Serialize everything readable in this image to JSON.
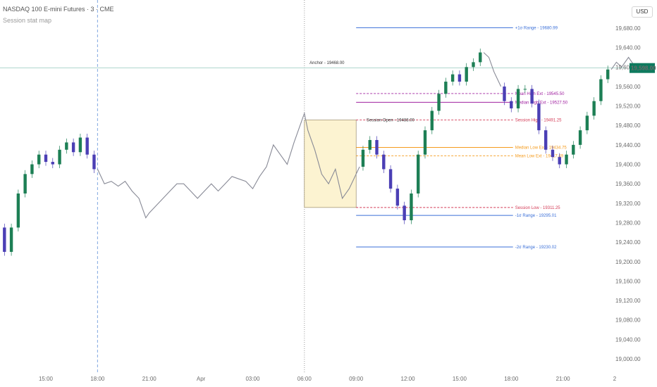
{
  "header": {
    "symbol": "NASDAQ 100 E-mini Futures · 3 · CME",
    "indicator": "Session stat map"
  },
  "currency": "USD",
  "colors": {
    "range": "#3a6fd8",
    "mean": "#a020a0",
    "session": "#d33a55",
    "low_ext": "#f59b1c",
    "bull": "#1d7f55",
    "bear": "#4b3fb5",
    "line": "#888a96",
    "price_tag": "#0e7a5e",
    "box_fill": "#fcf3d1",
    "box_border": "#8a7a55"
  },
  "chart_data": {
    "type": "line",
    "title": "NASDAQ 100 E-mini Futures · 3 · CME",
    "y_ticks": [
      19000,
      19040,
      19080,
      19120,
      19160,
      19200,
      19240,
      19280,
      19320,
      19360,
      19400,
      19440,
      19480,
      19520,
      19560,
      19600,
      19640,
      19680
    ],
    "y_tick_labels": [
      "19,000.00",
      "19,040.00",
      "19,080.00",
      "19,120.00",
      "19,160.00",
      "19,200.00",
      "19,240.00",
      "19,280.00",
      "19,320.00",
      "19,360.00",
      "19,400.00",
      "19,440.00",
      "19,480.00",
      "19,520.00",
      "19,560.00",
      "19,600.00",
      "19,640.00",
      "19,680.00"
    ],
    "ylim": [
      18990,
      19710
    ],
    "x_tick_labels": [
      "15:00",
      "18:00",
      "21:00",
      "Apr",
      "03:00",
      "06:00",
      "09:00",
      "12:00",
      "15:00",
      "18:00",
      "21:00",
      "2"
    ],
    "x_ticks_hours": [
      15,
      18,
      21,
      24,
      27,
      30,
      33,
      36,
      39,
      42,
      45,
      48
    ],
    "xlim_hours": [
      11.9,
      48
    ],
    "vlines_hours": [
      18,
      30
    ],
    "current_price": 19598,
    "current_price_label": "19,598.00",
    "anchor_label": "Anchor - 19468.00",
    "session_open_label": "Session Open - 19488.00",
    "session_box": {
      "x0": 30,
      "x1": 33,
      "y_high": 19491.25,
      "y_low": 19311.25
    },
    "levels": [
      {
        "label": "+1σ Range - 19680.99",
        "value": 19680.99,
        "kind": "range",
        "style": "solid"
      },
      {
        "label": "Mean High Ext - 19545.50",
        "value": 19545.5,
        "kind": "mean",
        "style": "dash"
      },
      {
        "label": "Median High Ext - 19527.50",
        "value": 19527.5,
        "kind": "mean",
        "style": "solid"
      },
      {
        "label": "Session High - 19491.25",
        "value": 19491.25,
        "kind": "session",
        "style": "dash"
      },
      {
        "label": "Median Low Ext - 19434.75",
        "value": 19434.75,
        "kind": "low_ext",
        "style": "solid"
      },
      {
        "label": "Mean Low Ext - 19417.49",
        "value": 19417.49,
        "kind": "low_ext",
        "style": "dash"
      },
      {
        "label": "Session Low - 19311.25",
        "value": 19311.25,
        "kind": "session",
        "style": "dash"
      },
      {
        "label": "-1σ Range - 19295.01",
        "value": 19295.01,
        "kind": "range",
        "style": "solid"
      },
      {
        "label": "-2σ Range - 19230.02",
        "value": 19230.02,
        "kind": "range",
        "style": "solid"
      }
    ],
    "levels_x_hours": [
      33,
      42.1
    ],
    "price_line_segments": [
      {
        "style": "candles",
        "points": [
          [
            11.9,
            19290
          ],
          [
            12.4,
            19270
          ],
          [
            12.8,
            19220
          ],
          [
            13.2,
            19270
          ],
          [
            13.6,
            19340
          ],
          [
            14.0,
            19380
          ],
          [
            14.4,
            19400
          ],
          [
            14.8,
            19420
          ],
          [
            15.2,
            19405
          ],
          [
            15.6,
            19400
          ],
          [
            16.0,
            19430
          ],
          [
            16.4,
            19445
          ],
          [
            16.8,
            19425
          ],
          [
            17.2,
            19455
          ],
          [
            17.6,
            19420
          ],
          [
            18.0,
            19390
          ]
        ]
      },
      {
        "style": "line",
        "points": [
          [
            18.0,
            19390
          ],
          [
            18.4,
            19360
          ],
          [
            18.8,
            19365
          ],
          [
            19.2,
            19355
          ],
          [
            19.6,
            19365
          ],
          [
            20.0,
            19345
          ],
          [
            20.4,
            19330
          ],
          [
            20.8,
            19290
          ],
          [
            21.0,
            19300
          ],
          [
            21.4,
            19315
          ],
          [
            21.8,
            19330
          ],
          [
            22.2,
            19345
          ],
          [
            22.6,
            19360
          ],
          [
            23.0,
            19360
          ],
          [
            23.4,
            19345
          ],
          [
            23.8,
            19330
          ],
          [
            24.2,
            19345
          ],
          [
            24.6,
            19360
          ],
          [
            25.0,
            19345
          ],
          [
            25.4,
            19360
          ],
          [
            25.8,
            19375
          ],
          [
            26.2,
            19370
          ],
          [
            26.6,
            19365
          ],
          [
            27.0,
            19350
          ],
          [
            27.4,
            19375
          ],
          [
            27.8,
            19395
          ],
          [
            28.2,
            19440
          ],
          [
            28.6,
            19420
          ],
          [
            29.0,
            19400
          ],
          [
            29.4,
            19445
          ],
          [
            29.8,
            19485
          ],
          [
            30.0,
            19505
          ],
          [
            30.2,
            19470
          ],
          [
            30.6,
            19430
          ],
          [
            31.0,
            19380
          ],
          [
            31.4,
            19360
          ],
          [
            31.8,
            19390
          ],
          [
            32.2,
            19330
          ],
          [
            32.6,
            19350
          ],
          [
            33.0,
            19380
          ],
          [
            33.2,
            19395
          ]
        ]
      },
      {
        "style": "candles",
        "points": [
          [
            33.2,
            19395
          ],
          [
            33.6,
            19430
          ],
          [
            34.0,
            19450
          ],
          [
            34.4,
            19420
          ],
          [
            34.8,
            19390
          ],
          [
            35.2,
            19350
          ],
          [
            35.6,
            19315
          ],
          [
            36.0,
            19285
          ],
          [
            36.4,
            19340
          ],
          [
            36.8,
            19420
          ],
          [
            37.2,
            19470
          ],
          [
            37.6,
            19510
          ],
          [
            38.0,
            19545
          ],
          [
            38.4,
            19570
          ],
          [
            38.8,
            19585
          ],
          [
            39.2,
            19570
          ],
          [
            39.6,
            19600
          ],
          [
            40.0,
            19610
          ],
          [
            40.4,
            19630
          ]
        ]
      },
      {
        "style": "line",
        "points": [
          [
            40.4,
            19630
          ],
          [
            40.7,
            19620
          ],
          [
            41.0,
            19590
          ],
          [
            41.4,
            19560
          ]
        ]
      },
      {
        "style": "candles",
        "points": [
          [
            41.4,
            19560
          ],
          [
            41.8,
            19530
          ],
          [
            42.2,
            19515
          ],
          [
            42.6,
            19555
          ],
          [
            43.0,
            19555
          ],
          [
            43.4,
            19525
          ],
          [
            43.8,
            19470
          ],
          [
            44.2,
            19430
          ],
          [
            44.6,
            19415
          ],
          [
            45.0,
            19400
          ],
          [
            45.4,
            19420
          ],
          [
            45.8,
            19440
          ],
          [
            46.2,
            19470
          ],
          [
            46.6,
            19500
          ],
          [
            47.0,
            19530
          ],
          [
            47.4,
            19575
          ],
          [
            47.8,
            19595
          ]
        ]
      },
      {
        "style": "line",
        "points": [
          [
            47.8,
            19595
          ],
          [
            48.1,
            19610
          ],
          [
            48.4,
            19600
          ],
          [
            48.8,
            19620
          ],
          [
            49.2,
            19600
          ]
        ]
      }
    ]
  }
}
